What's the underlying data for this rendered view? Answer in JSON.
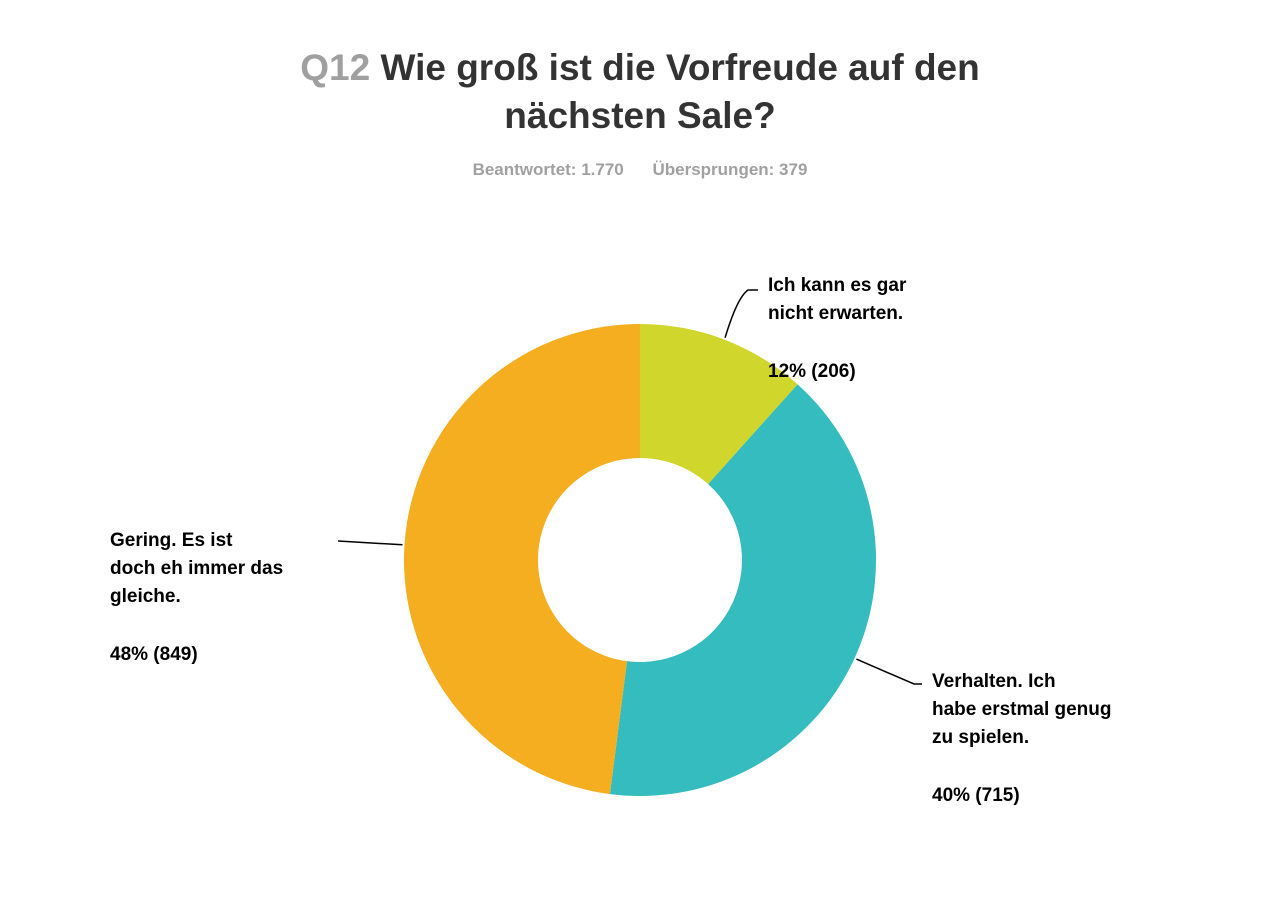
{
  "question_number": "Q12",
  "question_text_line1": "Wie groß ist die Vorfreude auf den",
  "question_text_line2": "nächsten Sale?",
  "answered": "Beantwortet: 1.770",
  "skipped": "Übersprungen: 379",
  "chart_data": {
    "type": "pie",
    "donut": true,
    "title": "Wie groß ist die Vorfreude auf den nächsten Sale?",
    "slices": [
      {
        "label_lines": [
          "Ich kann es gar",
          "nicht erwarten."
        ],
        "percent_label": "12% (206)",
        "value": 206,
        "color": "#d0d62c"
      },
      {
        "label_lines": [
          "Verhalten. Ich",
          "habe erstmal genug",
          "zu spielen."
        ],
        "percent_label": "40% (715)",
        "value": 715,
        "color": "#35bcbf"
      },
      {
        "label_lines": [
          "Gering. Es ist",
          "doch eh immer das",
          "gleiche."
        ],
        "percent_label": "48% (849)",
        "value": 849,
        "color": "#f5ae1f"
      }
    ]
  }
}
